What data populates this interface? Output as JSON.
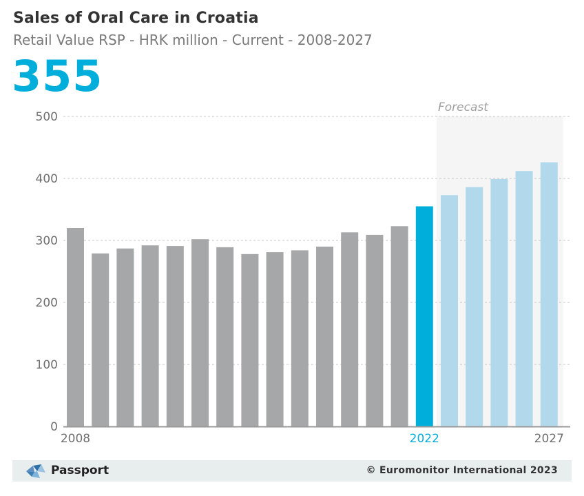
{
  "header": {
    "title": "Sales of Oral Care in Croatia",
    "subtitle": "Retail Value RSP - HRK million - Current - 2008-2027",
    "headline_value": "355"
  },
  "footer": {
    "brand": "Passport",
    "copyright": "© Euromonitor International 2023"
  },
  "chart_data": {
    "type": "bar",
    "categories": [
      "2008",
      "2009",
      "2010",
      "2011",
      "2012",
      "2013",
      "2014",
      "2015",
      "2016",
      "2017",
      "2018",
      "2019",
      "2020",
      "2021",
      "2022",
      "2023",
      "2024",
      "2025",
      "2026",
      "2027"
    ],
    "values": [
      320,
      279,
      287,
      292,
      291,
      302,
      289,
      278,
      281,
      284,
      290,
      313,
      309,
      323,
      355,
      373,
      386,
      399,
      412,
      426
    ],
    "ylim": [
      0,
      500
    ],
    "yticks": [
      0,
      100,
      200,
      300,
      400,
      500
    ],
    "xtick_labels": [
      "2008",
      "2022",
      "2027"
    ],
    "highlight_category": "2022",
    "forecast_start": "2023",
    "forecast_label": "Forecast",
    "grid": true,
    "colors": {
      "historic": "#a6a7a9",
      "highlight": "#00aedb",
      "forecast": "#b2d8ec",
      "forecast_band": "#f5f5f5",
      "grid": "#c8c8c8",
      "axis": "#999999"
    }
  }
}
